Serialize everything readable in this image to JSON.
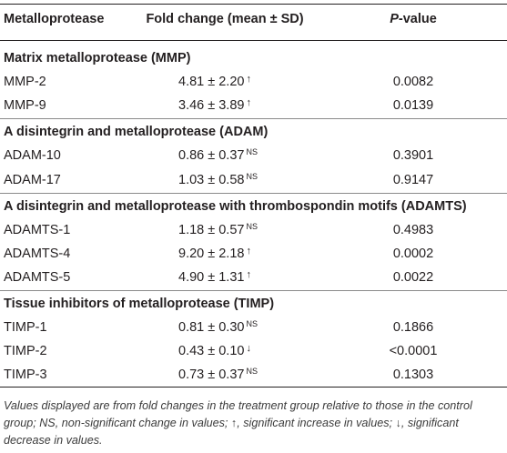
{
  "headers": {
    "col1": "Metalloprotease",
    "col2": "Fold change (mean ± SD)",
    "col3_italic": "P",
    "col3_rest": "-value"
  },
  "groups": [
    {
      "title": "Matrix metalloprotease (MMP)",
      "rows": [
        {
          "name": "MMP-2",
          "value": "4.81 ± 2.20",
          "mark": "↑",
          "pvalue": "0.0082"
        },
        {
          "name": "MMP-9",
          "value": "3.46 ± 3.89",
          "mark": "↑",
          "pvalue": "0.0139"
        }
      ]
    },
    {
      "title": "A disintegrin and metalloprotease (ADAM)",
      "rows": [
        {
          "name": "ADAM-10",
          "value": "0.86 ± 0.37",
          "mark": "NS",
          "pvalue": "0.3901"
        },
        {
          "name": "ADAM-17",
          "value": "1.03 ± 0.58",
          "mark": "NS",
          "pvalue": "0.9147"
        }
      ]
    },
    {
      "title": "A disintegrin and metalloprotease with thrombospondin motifs (ADAMTS)",
      "rows": [
        {
          "name": "ADAMTS-1",
          "value": "1.18 ± 0.57",
          "mark": "NS",
          "pvalue": "0.4983"
        },
        {
          "name": "ADAMTS-4",
          "value": "9.20 ± 2.18",
          "mark": "↑",
          "pvalue": "0.0002"
        },
        {
          "name": "ADAMTS-5",
          "value": "4.90 ± 1.31",
          "mark": "↑",
          "pvalue": "0.0022"
        }
      ]
    },
    {
      "title": "Tissue inhibitors of metalloprotease (TIMP)",
      "rows": [
        {
          "name": "TIMP-1",
          "value": "0.81 ± 0.30",
          "mark": "NS",
          "pvalue": "0.1866"
        },
        {
          "name": "TIMP-2",
          "value": "0.43 ± 0.10",
          "mark": "↓",
          "pvalue": "<0.0001"
        },
        {
          "name": "TIMP-3",
          "value": "0.73 ± 0.37",
          "mark": "NS",
          "pvalue": "0.1303"
        }
      ]
    }
  ],
  "footnote": "Values displayed are from fold changes in the treatment group relative to those in the control group; NS, non-significant change in values; ↑, significant increase in values; ↓, significant decrease in values."
}
